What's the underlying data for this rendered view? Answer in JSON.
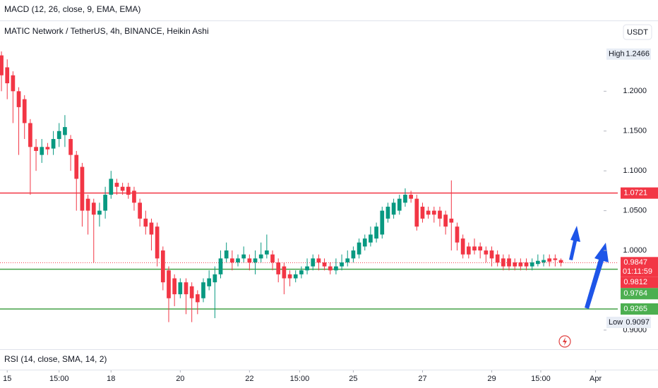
{
  "chart_data": {
    "type": "candlestick",
    "indicator_top": "MACD (12, 26, close, 9, EMA, EMA)",
    "title": "MATIC Network / TetherUS, 4h, BINANCE, Heikin Ashi",
    "currency": "USDT",
    "indicator_bottom": "RSI (14, close, SMA, 14, 2)",
    "up_color": "#089981",
    "down_color": "#f23645",
    "open": [
      1.245,
      1.23,
      1.22,
      1.2,
      1.19,
      1.16,
      1.13,
      1.12,
      1.13,
      1.128,
      1.14,
      1.145,
      1.14,
      1.12,
      1.105,
      1.065,
      1.06,
      1.045,
      1.05,
      1.07,
      1.085,
      1.08,
      1.08,
      1.075,
      1.06,
      1.04,
      1.035,
      1.03,
      1.0,
      0.975,
      0.965,
      0.945,
      0.96,
      0.955,
      0.945,
      0.94,
      0.955,
      0.96,
      0.97,
      0.99,
      0.99,
      0.985,
      0.99,
      0.99,
      0.985,
      0.99,
      0.995,
      0.995,
      0.985,
      0.98,
      0.97,
      0.965,
      0.97,
      0.975,
      0.98,
      0.99,
      0.985,
      0.98,
      0.975,
      0.98,
      0.985,
      0.99,
      0.995,
      1.005,
      1.01,
      1.015,
      1.02,
      1.04,
      1.045,
      1.05,
      1.06,
      1.07,
      1.065,
      1.055,
      1.05,
      1.05,
      1.05,
      1.045,
      1.04,
      1.03,
      1.015,
      1.005,
      1.005,
      1.005,
      1.0,
      1.0,
      0.995,
      0.99,
      0.99,
      0.985,
      0.985,
      0.985,
      0.98,
      0.983,
      0.985,
      0.99,
      0.99,
      0.988
    ],
    "high": [
      1.25,
      1.24,
      1.225,
      1.205,
      1.195,
      1.165,
      1.14,
      1.14,
      1.135,
      1.15,
      1.16,
      1.17,
      1.145,
      1.125,
      1.11,
      1.07,
      1.065,
      1.06,
      1.08,
      1.1,
      1.09,
      1.085,
      1.085,
      1.08,
      1.065,
      1.05,
      1.04,
      1.035,
      1.005,
      0.98,
      0.97,
      0.965,
      0.965,
      0.96,
      0.95,
      0.965,
      0.975,
      0.98,
      1.0,
      1.01,
      1.0,
      0.995,
      1.005,
      0.995,
      1.0,
      1.01,
      1.02,
      1.0,
      0.99,
      0.985,
      0.975,
      0.975,
      0.98,
      0.99,
      0.995,
      0.995,
      0.99,
      0.985,
      0.99,
      0.995,
      1.0,
      1.005,
      1.015,
      1.02,
      1.03,
      1.035,
      1.055,
      1.06,
      1.065,
      1.07,
      1.078,
      1.075,
      1.07,
      1.06,
      1.055,
      1.055,
      1.055,
      1.05,
      1.088,
      1.035,
      1.02,
      1.01,
      1.015,
      1.01,
      1.005,
      1.005,
      1.0,
      0.995,
      0.995,
      0.99,
      0.99,
      0.99,
      0.99,
      0.995,
      0.995,
      0.995,
      0.995,
      0.99
    ],
    "low": [
      1.2,
      1.19,
      1.16,
      1.12,
      1.14,
      1.07,
      1.1,
      1.11,
      1.12,
      1.12,
      1.13,
      1.13,
      1.1,
      1.05,
      1.03,
      1.02,
      0.985,
      1.03,
      1.04,
      1.065,
      1.07,
      1.07,
      1.065,
      1.05,
      1.03,
      1.02,
      1.0,
      0.98,
      0.95,
      0.91,
      0.93,
      0.94,
      0.92,
      0.91,
      0.92,
      0.935,
      0.95,
      0.915,
      0.965,
      0.985,
      0.975,
      0.98,
      0.985,
      0.975,
      0.97,
      0.985,
      0.99,
      0.975,
      0.96,
      0.945,
      0.955,
      0.96,
      0.965,
      0.97,
      0.975,
      0.975,
      0.975,
      0.97,
      0.97,
      0.975,
      0.98,
      0.985,
      0.99,
      1.0,
      1.005,
      1.01,
      1.015,
      1.035,
      1.04,
      1.045,
      1.055,
      1.06,
      1.025,
      1.035,
      1.04,
      1.035,
      1.03,
      1.02,
      1.0,
      1.0,
      0.99,
      0.99,
      0.995,
      0.99,
      0.985,
      0.98,
      0.98,
      0.975,
      0.975,
      0.975,
      0.975,
      0.975,
      0.975,
      0.98,
      0.98,
      0.98,
      0.98,
      0.98
    ],
    "close": [
      1.22,
      1.21,
      1.2,
      1.18,
      1.16,
      1.13,
      1.125,
      1.13,
      1.127,
      1.14,
      1.15,
      1.155,
      1.12,
      1.09,
      1.05,
      1.05,
      1.045,
      1.05,
      1.07,
      1.09,
      1.08,
      1.075,
      1.07,
      1.06,
      1.04,
      1.03,
      1.02,
      0.99,
      0.96,
      0.94,
      0.945,
      0.96,
      0.945,
      0.94,
      0.935,
      0.96,
      0.965,
      0.97,
      0.99,
      1.0,
      0.985,
      0.99,
      0.995,
      0.985,
      0.99,
      0.995,
      1.0,
      0.985,
      0.97,
      0.965,
      0.965,
      0.97,
      0.975,
      0.98,
      0.99,
      0.985,
      0.98,
      0.975,
      0.98,
      0.985,
      0.99,
      1.0,
      1.01,
      1.015,
      1.02,
      1.03,
      1.05,
      1.055,
      1.06,
      1.065,
      1.07,
      1.065,
      1.03,
      1.04,
      1.045,
      1.045,
      1.04,
      1.03,
      1.035,
      1.01,
      0.995,
      0.995,
      1.0,
      1.0,
      0.995,
      0.99,
      0.985,
      0.98,
      0.98,
      0.98,
      0.98,
      0.98,
      0.985,
      0.987,
      0.988,
      0.986,
      0.988,
      0.9847
    ],
    "xlim": [
      -0.25,
      104.4
    ],
    "xticks": [
      {
        "value": 1,
        "label": "15"
      },
      {
        "value": 10,
        "label": "15:00"
      },
      {
        "value": 19,
        "label": "18"
      },
      {
        "value": 31,
        "label": "20"
      },
      {
        "value": 43,
        "label": "22"
      },
      {
        "value": 51.7,
        "label": "15:00"
      },
      {
        "value": 61,
        "label": "25"
      },
      {
        "value": 73,
        "label": "27"
      },
      {
        "value": 85,
        "label": "29"
      },
      {
        "value": 93.5,
        "label": "15:00"
      },
      {
        "value": 103,
        "label": "Apr"
      }
    ],
    "ylim": [
      0.876,
      1.288
    ],
    "yticks": [
      {
        "value": 0.9,
        "label": "0.9000"
      },
      {
        "value": 1.0,
        "label": "1.0000"
      },
      {
        "value": 1.05,
        "label": "1.0500"
      },
      {
        "value": 1.1,
        "label": "1.1000"
      },
      {
        "value": 1.15,
        "label": "1.1500"
      },
      {
        "value": 1.2,
        "label": "1.2000"
      }
    ],
    "high_label": "High",
    "high_value": 1.2466,
    "low_label": "Low",
    "low_value": 0.9097,
    "hlines": [
      {
        "value": 1.0721,
        "color": "#f23645"
      },
      {
        "value": 0.9764,
        "color": "#43a047"
      },
      {
        "value": 0.9265,
        "color": "#43a047"
      }
    ],
    "last_price": 0.9847,
    "countdown": "01:11:59",
    "price_labels": [
      {
        "value": 1.0721,
        "color": "#f23645"
      },
      {
        "value": 0.9812,
        "color": "#f23645"
      },
      {
        "value": 0.9764,
        "color": "#4caf50"
      },
      {
        "value": 0.9265,
        "color": "#4caf50"
      }
    ]
  }
}
